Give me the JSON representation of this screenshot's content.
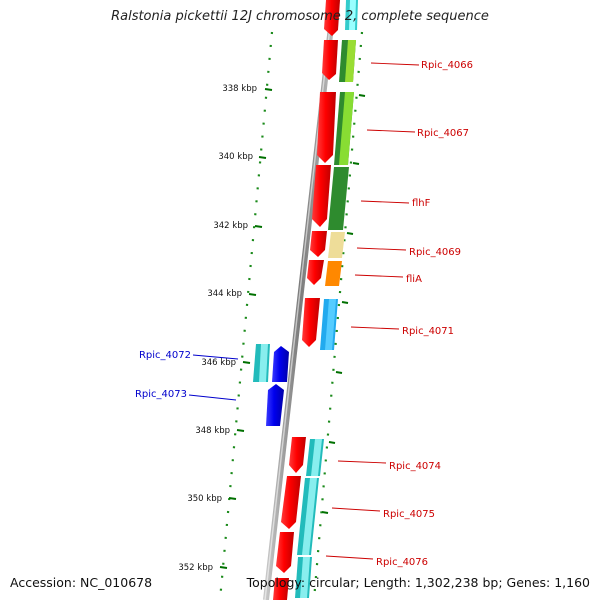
{
  "title": "Ralstonia pickettii 12J chromosome 2, complete sequence",
  "footer": {
    "accession": "Accession: NC_010678",
    "summary": "Topology: circular; Length: 1,302,238 bp; Genes: 1,160"
  },
  "ticks": [
    "338 kbp",
    "340 kbp",
    "342 kbp",
    "344 kbp",
    "346 kbp",
    "348 kbp",
    "350 kbp",
    "352 kbp"
  ],
  "genes": [
    {
      "label": "Rpic_4066",
      "strand": "forward",
      "color": "#cc0000"
    },
    {
      "label": "Rpic_4067",
      "strand": "forward",
      "color": "#cc0000"
    },
    {
      "label": "flhF",
      "strand": "forward",
      "color": "#cc0000"
    },
    {
      "label": "Rpic_4069",
      "strand": "forward",
      "color": "#cc0000"
    },
    {
      "label": "fliA",
      "strand": "forward",
      "color": "#cc0000"
    },
    {
      "label": "Rpic_4071",
      "strand": "forward",
      "color": "#cc0000"
    },
    {
      "label": "Rpic_4072",
      "strand": "reverse",
      "color": "#0000cc"
    },
    {
      "label": "Rpic_4073",
      "strand": "reverse",
      "color": "#0000cc"
    },
    {
      "label": "Rpic_4074",
      "strand": "forward",
      "color": "#cc0000"
    },
    {
      "label": "Rpic_4075",
      "strand": "forward",
      "color": "#cc0000"
    },
    {
      "label": "Rpic_4076",
      "strand": "forward",
      "color": "#cc0000"
    }
  ],
  "colors": {
    "cds": "#ff0000",
    "cds_reverse": "#0000ee",
    "backbone": "#8a8a8a",
    "tick": "#007000",
    "forward_label": "#cc0000",
    "reverse_label": "#0000cc"
  }
}
